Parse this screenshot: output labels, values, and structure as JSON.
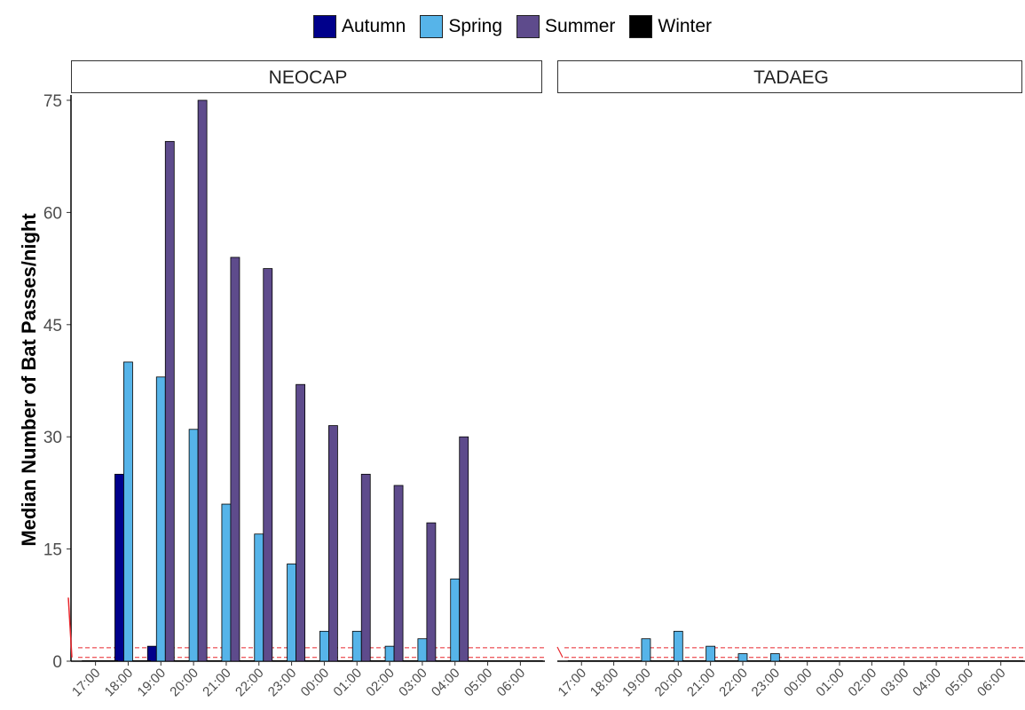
{
  "chart_data": {
    "type": "bar",
    "title": "",
    "xlabel": "",
    "ylabel": "Median Number of Bat Passes/night",
    "ylim": [
      0,
      76
    ],
    "yticks": [
      0,
      15,
      30,
      45,
      60,
      75
    ],
    "categories": [
      "17:00",
      "18:00",
      "19:00",
      "20:00",
      "21:00",
      "22:00",
      "23:00",
      "00:00",
      "01:00",
      "02:00",
      "03:00",
      "04:00",
      "05:00",
      "06:00"
    ],
    "legend_position": "top",
    "grid": false,
    "series_colors": {
      "Autumn": "#00008B",
      "Spring": "#56B4E9",
      "Summer": "#5E4B8C",
      "Winter": "#000000"
    },
    "reference_lines": [
      {
        "y": 0.5,
        "style": "dashed",
        "color": "#e8262c"
      },
      {
        "y": 1.8,
        "style": "dashed",
        "color": "#e8262c"
      }
    ],
    "legend": [
      "Autumn",
      "Spring",
      "Summer",
      "Winter"
    ],
    "panels": [
      {
        "name": "NEOCAP",
        "series": [
          {
            "name": "Autumn",
            "values": [
              0,
              25,
              2,
              0,
              0,
              0,
              0,
              0,
              0,
              0,
              0,
              0,
              0,
              0
            ]
          },
          {
            "name": "Spring",
            "values": [
              0,
              40,
              38,
              31,
              21,
              17,
              13,
              4,
              4,
              2,
              3,
              11,
              0,
              0
            ]
          },
          {
            "name": "Summer",
            "values": [
              0,
              0,
              69.5,
              75,
              54,
              52.5,
              37,
              31.5,
              25,
              23.5,
              18.5,
              30,
              0,
              0
            ]
          },
          {
            "name": "Winter",
            "values": [
              0,
              0,
              0,
              0,
              0,
              0,
              0,
              0,
              0,
              0,
              0,
              0,
              0,
              0
            ]
          }
        ]
      },
      {
        "name": "TADAEG",
        "series": [
          {
            "name": "Autumn",
            "values": [
              0,
              0,
              0,
              0,
              0,
              0,
              0,
              0,
              0,
              0,
              0,
              0,
              0,
              0
            ]
          },
          {
            "name": "Spring",
            "values": [
              0,
              0,
              3,
              4,
              2,
              1,
              1,
              0,
              0,
              0,
              0,
              0,
              0,
              0
            ]
          },
          {
            "name": "Summer",
            "values": [
              0,
              0,
              0,
              0,
              0,
              0,
              0,
              0,
              0,
              0,
              0,
              0,
              0,
              0
            ]
          },
          {
            "name": "Winter",
            "values": [
              0,
              0,
              0,
              0,
              0,
              0,
              0,
              0,
              0,
              0,
              0,
              0,
              0,
              0
            ]
          }
        ]
      }
    ]
  }
}
